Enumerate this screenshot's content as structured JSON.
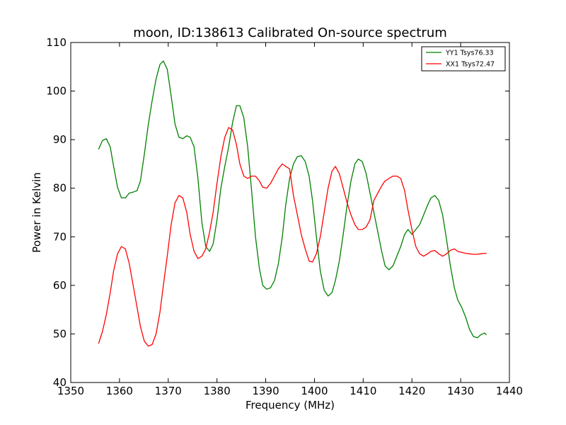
{
  "chart_data": {
    "type": "line",
    "title": "moon, ID:138613 Calibrated On-source spectrum",
    "xlabel": "Frequency (MHz)",
    "ylabel": "Power in Kelvin",
    "xlim": [
      1350,
      1440
    ],
    "ylim": [
      40,
      110
    ],
    "xticks": [
      1350,
      1360,
      1370,
      1380,
      1390,
      1400,
      1410,
      1420,
      1430,
      1440
    ],
    "yticks": [
      40,
      50,
      60,
      70,
      80,
      90,
      100,
      110
    ],
    "grid": false,
    "legend_position": "top-right",
    "series": [
      {
        "name": "YY1 Tsys76.33",
        "color": "#008000",
        "x": [
          1355.7,
          1356.5,
          1357.3,
          1358.1,
          1358.8,
          1359.6,
          1360.4,
          1361.2,
          1362.0,
          1362.8,
          1363.6,
          1364.3,
          1365.1,
          1365.9,
          1366.7,
          1367.5,
          1368.3,
          1369.0,
          1369.8,
          1370.6,
          1371.4,
          1372.2,
          1373.0,
          1373.8,
          1374.5,
          1375.3,
          1376.1,
          1376.9,
          1377.7,
          1378.5,
          1379.2,
          1380.0,
          1380.8,
          1381.6,
          1382.4,
          1383.2,
          1384.0,
          1384.7,
          1385.5,
          1386.3,
          1387.1,
          1387.9,
          1388.7,
          1389.4,
          1390.2,
          1391.0,
          1391.8,
          1392.6,
          1393.4,
          1394.1,
          1394.9,
          1395.7,
          1396.5,
          1397.3,
          1398.1,
          1398.9,
          1399.6,
          1400.4,
          1401.2,
          1402.0,
          1402.8,
          1403.6,
          1404.3,
          1405.1,
          1405.9,
          1406.7,
          1407.5,
          1408.3,
          1409.0,
          1409.8,
          1410.6,
          1411.4,
          1412.2,
          1413.0,
          1413.8,
          1414.5,
          1415.3,
          1416.1,
          1416.9,
          1417.7,
          1418.5,
          1419.2,
          1420.0,
          1420.8,
          1421.6,
          1422.4,
          1423.2,
          1423.9,
          1424.7,
          1425.5,
          1426.3,
          1427.1,
          1427.9,
          1428.7,
          1429.4,
          1430.2,
          1431.0,
          1431.8,
          1432.6,
          1433.4,
          1434.1,
          1434.9,
          1435.3
        ],
        "y": [
          88.0,
          89.8,
          90.2,
          88.5,
          84.5,
          80.2,
          78.0,
          78.0,
          79.0,
          79.2,
          79.5,
          81.5,
          87.0,
          93.0,
          98.0,
          102.5,
          105.5,
          106.2,
          104.5,
          99.0,
          93.2,
          90.5,
          90.2,
          90.8,
          90.5,
          88.5,
          82.0,
          73.0,
          68.0,
          67.0,
          68.5,
          73.5,
          80.0,
          84.5,
          88.5,
          93.5,
          97.0,
          97.0,
          94.5,
          88.5,
          79.5,
          70.0,
          63.5,
          60.0,
          59.2,
          59.5,
          61.0,
          64.5,
          70.0,
          76.5,
          82.0,
          85.0,
          86.5,
          86.7,
          85.5,
          82.5,
          77.5,
          70.0,
          63.0,
          59.0,
          57.8,
          58.5,
          61.0,
          65.0,
          70.5,
          76.5,
          81.5,
          85.0,
          86.0,
          85.5,
          83.0,
          79.0,
          75.0,
          71.0,
          67.0,
          64.0,
          63.2,
          64.0,
          66.0,
          68.0,
          70.5,
          71.5,
          70.5,
          71.5,
          72.5,
          74.5,
          76.5,
          78.0,
          78.5,
          77.5,
          74.5,
          69.5,
          64.0,
          59.5,
          57.0,
          55.5,
          53.5,
          51.0,
          49.5,
          49.2,
          49.8,
          50.2,
          49.8
        ]
      },
      {
        "name": "XX1 Tsys72.47",
        "color": "#ff0000",
        "x": [
          1355.7,
          1356.5,
          1357.3,
          1358.1,
          1358.8,
          1359.6,
          1360.4,
          1361.2,
          1362.0,
          1362.8,
          1363.6,
          1364.3,
          1365.1,
          1365.9,
          1366.7,
          1367.5,
          1368.3,
          1369.0,
          1369.8,
          1370.6,
          1371.4,
          1372.2,
          1373.0,
          1373.8,
          1374.5,
          1375.3,
          1376.1,
          1376.9,
          1377.7,
          1378.5,
          1379.2,
          1380.0,
          1380.8,
          1381.6,
          1382.4,
          1383.2,
          1384.0,
          1384.7,
          1385.5,
          1386.3,
          1387.1,
          1387.9,
          1388.7,
          1389.4,
          1390.2,
          1391.0,
          1391.8,
          1392.6,
          1393.4,
          1394.1,
          1394.9,
          1395.7,
          1396.5,
          1397.3,
          1398.1,
          1398.9,
          1399.6,
          1400.4,
          1401.2,
          1402.0,
          1402.8,
          1403.6,
          1404.3,
          1405.1,
          1405.9,
          1406.7,
          1407.5,
          1408.3,
          1409.0,
          1409.8,
          1410.6,
          1411.4,
          1412.2,
          1413.0,
          1413.8,
          1414.5,
          1415.3,
          1416.1,
          1416.9,
          1417.7,
          1418.5,
          1419.2,
          1420.0,
          1420.8,
          1421.6,
          1422.4,
          1423.2,
          1423.9,
          1424.7,
          1425.5,
          1426.3,
          1427.1,
          1427.9,
          1428.7,
          1429.4,
          1430.2,
          1431.0,
          1431.8,
          1432.6,
          1433.4,
          1434.1,
          1434.9,
          1435.3
        ],
        "y": [
          48.0,
          50.5,
          54.0,
          58.5,
          63.0,
          66.5,
          68.0,
          67.5,
          64.5,
          60.0,
          55.5,
          51.5,
          48.5,
          47.5,
          47.8,
          50.0,
          54.5,
          60.0,
          66.0,
          72.5,
          77.0,
          78.5,
          78.0,
          75.0,
          70.5,
          67.0,
          65.5,
          66.0,
          67.5,
          71.0,
          75.0,
          81.0,
          86.5,
          90.5,
          92.5,
          92.0,
          89.0,
          85.0,
          82.5,
          82.0,
          82.5,
          82.5,
          81.5,
          80.2,
          80.0,
          81.0,
          82.5,
          84.0,
          85.0,
          84.5,
          84.0,
          78.5,
          74.5,
          70.5,
          67.5,
          65.0,
          64.8,
          66.5,
          70.0,
          75.0,
          80.0,
          83.5,
          84.5,
          83.0,
          80.0,
          77.0,
          74.5,
          72.5,
          71.5,
          71.5,
          72.0,
          73.5,
          77.5,
          79.0,
          80.5,
          81.5,
          82.0,
          82.5,
          82.5,
          82.0,
          79.5,
          75.5,
          71.5,
          68.0,
          66.5,
          66.0,
          66.5,
          67.0,
          67.2,
          66.5,
          66.0,
          66.5,
          67.2,
          67.5,
          67.0,
          66.8,
          66.6,
          66.5,
          66.4,
          66.4,
          66.5,
          66.6,
          66.6
        ]
      }
    ]
  }
}
